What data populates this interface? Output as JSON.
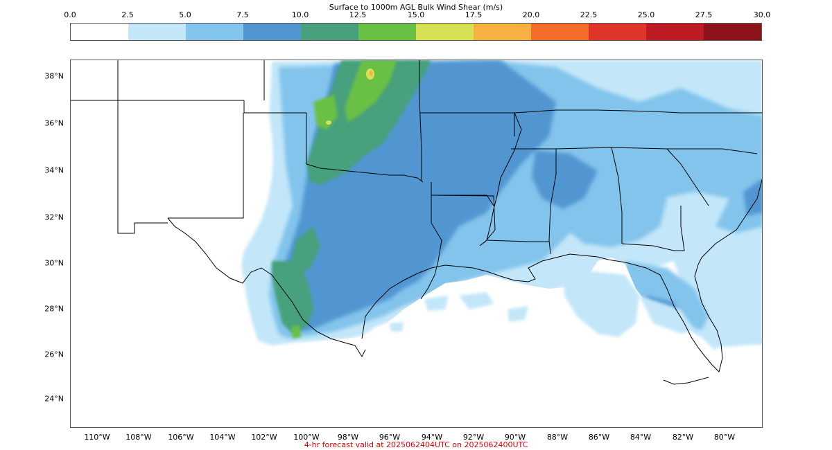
{
  "colorbar": {
    "title": "Surface to 1000m AGL Bulk Wind Shear (m/s)",
    "ticks": [
      "0.0",
      "2.5",
      "5.0",
      "7.5",
      "10.0",
      "12.5",
      "15.0",
      "17.5",
      "20.0",
      "22.5",
      "25.0",
      "27.5",
      "30.0"
    ],
    "colors": [
      "#ffffff",
      "#c3e7f9",
      "#83c4ec",
      "#5196d1",
      "#47a17c",
      "#6ac044",
      "#d8e156",
      "#f7b143",
      "#f26d2a",
      "#df3528",
      "#bc1b24",
      "#8c1319"
    ]
  },
  "map": {
    "lat_labels": [
      "38°N",
      "36°N",
      "34°N",
      "32°N",
      "30°N",
      "28°N",
      "26°N",
      "24°N"
    ],
    "lon_labels": [
      "110°W",
      "108°W",
      "106°W",
      "104°W",
      "102°W",
      "100°W",
      "98°W",
      "96°W",
      "94°W",
      "92°W",
      "90°W",
      "88°W",
      "86°W",
      "84°W",
      "82°W",
      "80°W"
    ]
  },
  "footer": {
    "text": "4-hr forecast valid at 2025062404UTC on 2025062400UTC"
  }
}
